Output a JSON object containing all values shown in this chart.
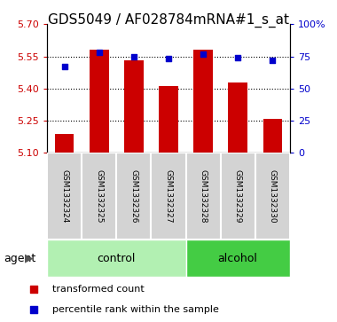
{
  "title": "GDS5049 / AF028784mRNA#1_s_at",
  "samples": [
    "GSM1332324",
    "GSM1332325",
    "GSM1332326",
    "GSM1332327",
    "GSM1332328",
    "GSM1332329",
    "GSM1332330"
  ],
  "transformed_counts": [
    5.19,
    5.58,
    5.53,
    5.41,
    5.58,
    5.43,
    5.26
  ],
  "percentile_ranks": [
    67,
    78,
    75,
    73,
    77,
    74,
    72
  ],
  "ylim_left": [
    5.1,
    5.7
  ],
  "ylim_right": [
    0,
    100
  ],
  "yticks_left": [
    5.1,
    5.25,
    5.4,
    5.55,
    5.7
  ],
  "yticks_right": [
    0,
    25,
    50,
    75,
    100
  ],
  "ytick_labels_right": [
    "0",
    "25",
    "50",
    "75",
    "100%"
  ],
  "bar_color": "#cc0000",
  "dot_color": "#0000cc",
  "bar_bottom": 5.1,
  "groups": [
    {
      "label": "control",
      "indices": [
        0,
        1,
        2,
        3
      ],
      "color": "#b2f0b2"
    },
    {
      "label": "alcohol",
      "indices": [
        4,
        5,
        6
      ],
      "color": "#44cc44"
    }
  ],
  "agent_label": "agent",
  "legend_items": [
    {
      "label": "transformed count",
      "color": "#cc0000"
    },
    {
      "label": "percentile rank within the sample",
      "color": "#0000cc"
    }
  ],
  "grid_color": "black",
  "grid_linestyle": ":",
  "tick_label_color_left": "#cc0000",
  "tick_label_color_right": "#0000cc",
  "sample_bg": "#d3d3d3",
  "title_fontsize": 11,
  "bar_width": 0.55,
  "plot_bg": "#ffffff",
  "fig_bg": "#ffffff"
}
